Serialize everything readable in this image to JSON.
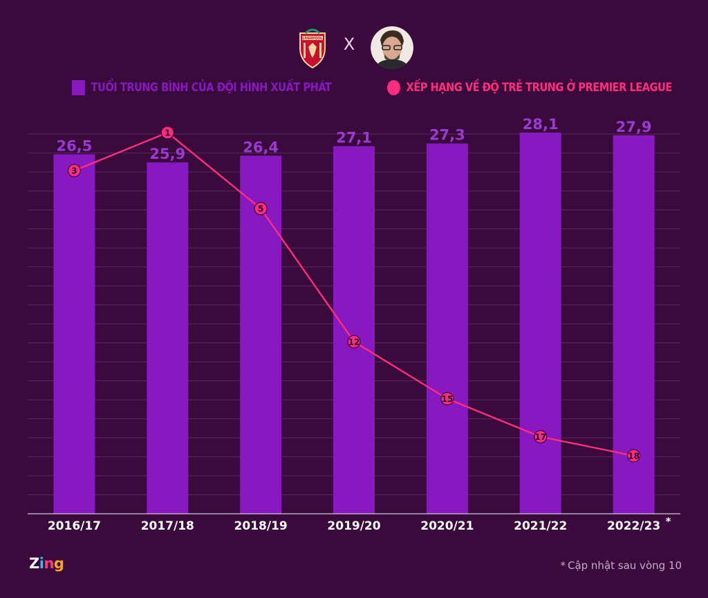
{
  "header": {
    "separator": "X",
    "crest_icon": "liverpool-crest-icon",
    "avatar_icon": "coach-avatar-icon",
    "crest_text": "LIVERPOOL"
  },
  "legend": {
    "bar_label": "TUỔI TRUNG BÌNH CỦA ĐỘI HÌNH XUẤT PHÁT",
    "line_label": "XẾP HẠNG VỀ ĐỘ TRẺ TRUNG Ở PREMIER LEAGUE"
  },
  "colors": {
    "background": "#3a0a3c",
    "bar": "#8818c0",
    "bar_label": "#9a3ad0",
    "line": "#ff2d7c",
    "grid": "#5a2a5c",
    "axis": "#d8c8dc",
    "tick": "#ffffff"
  },
  "chart_data": {
    "type": "bar",
    "categories": [
      "2016/17",
      "2017/18",
      "2018/19",
      "2019/20",
      "2020/21",
      "2021/22",
      "2022/23"
    ],
    "category_marks": [
      "",
      "",
      "",
      "",
      "",
      "",
      "*"
    ],
    "series": [
      {
        "name": "TUỔI TRUNG BÌNH CỦA ĐỘI HÌNH XUẤT PHÁT",
        "type": "bar",
        "values": [
          26.5,
          25.9,
          26.4,
          27.1,
          27.3,
          28.1,
          27.9
        ],
        "labels": [
          "26,5",
          "25,9",
          "26,4",
          "27,1",
          "27,3",
          "28,1",
          "27,9"
        ]
      },
      {
        "name": "XẾP HẠNG VỀ ĐỘ TRẺ TRUNG Ở PREMIER LEAGUE",
        "type": "line",
        "values": [
          3,
          1,
          5,
          12,
          15,
          17,
          18
        ],
        "labels": [
          "3",
          "1",
          "5",
          "12",
          "15",
          "17",
          "18"
        ]
      }
    ],
    "bar_ylim": [
      0,
      28.1
    ],
    "line_ylim": [
      1,
      18
    ],
    "grid": true,
    "legend_position": "top"
  },
  "footer": {
    "note": "Cập nhật sau vòng 10",
    "note_mark": "*",
    "brand": {
      "z": "Z",
      "i": "i",
      "n": "n",
      "g": "g"
    }
  }
}
